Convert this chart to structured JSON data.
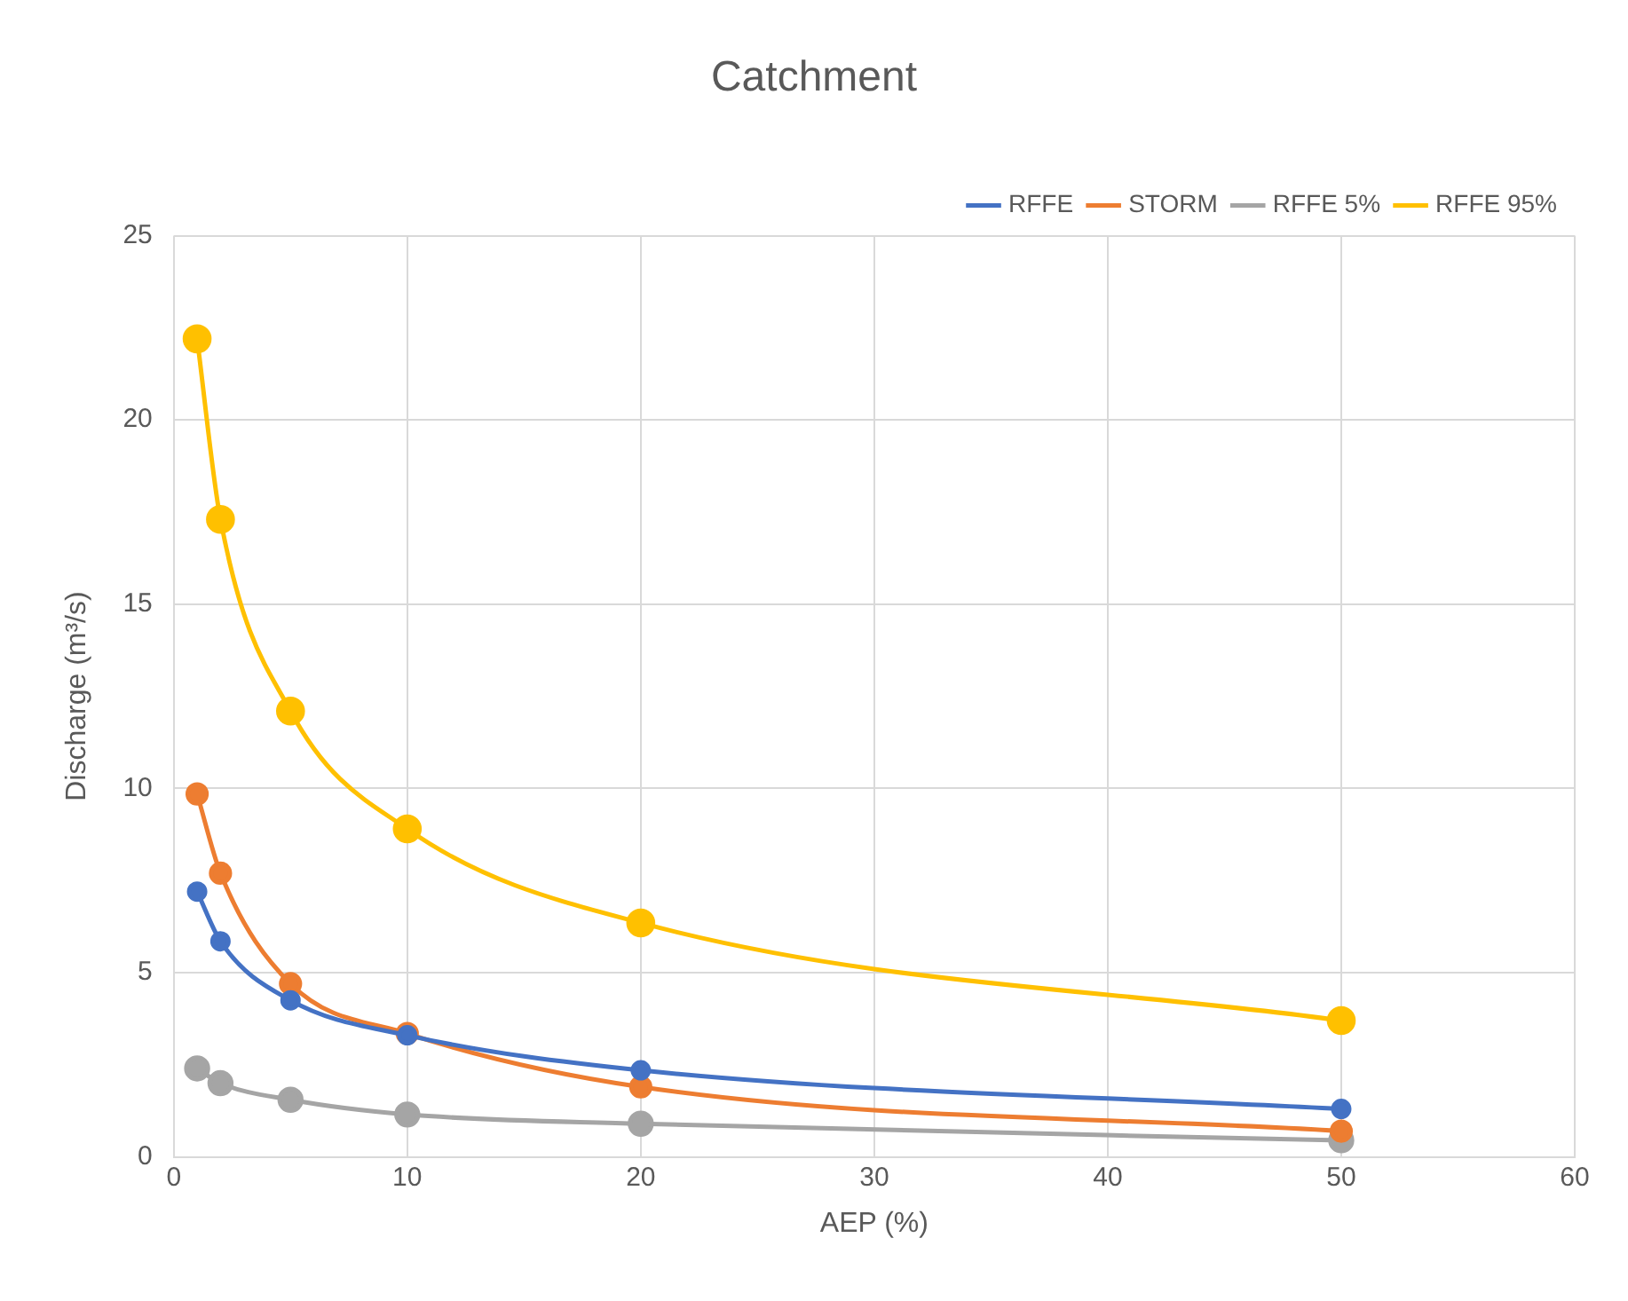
{
  "chart_data": {
    "type": "line",
    "title": "Catchment",
    "xlabel": "AEP (%)",
    "ylabel": "Discharge (m³/s)",
    "x": [
      1,
      2,
      5,
      10,
      20,
      50
    ],
    "series": [
      {
        "name": "RFFE",
        "color": "#4472c4",
        "values": [
          7.2,
          5.85,
          4.25,
          3.3,
          2.35,
          1.3
        ]
      },
      {
        "name": "STORM",
        "color": "#ed7d31",
        "values": [
          9.85,
          7.7,
          4.7,
          3.35,
          1.9,
          0.7
        ]
      },
      {
        "name": "RFFE 5%",
        "color": "#a5a5a5",
        "values": [
          2.4,
          2.0,
          1.55,
          1.15,
          0.9,
          0.45
        ]
      },
      {
        "name": "RFFE 95%",
        "color": "#ffc000",
        "values": [
          22.2,
          17.3,
          12.1,
          8.9,
          6.35,
          3.7
        ]
      }
    ],
    "xlim": [
      0,
      60
    ],
    "xticks": [
      0,
      10,
      20,
      30,
      40,
      50,
      60
    ],
    "ylim": [
      0,
      25
    ],
    "yticks": [
      0,
      5,
      10,
      15,
      20,
      25
    ],
    "grid": true,
    "legend": "top right",
    "marker": "circle",
    "line_style": "solid"
  }
}
